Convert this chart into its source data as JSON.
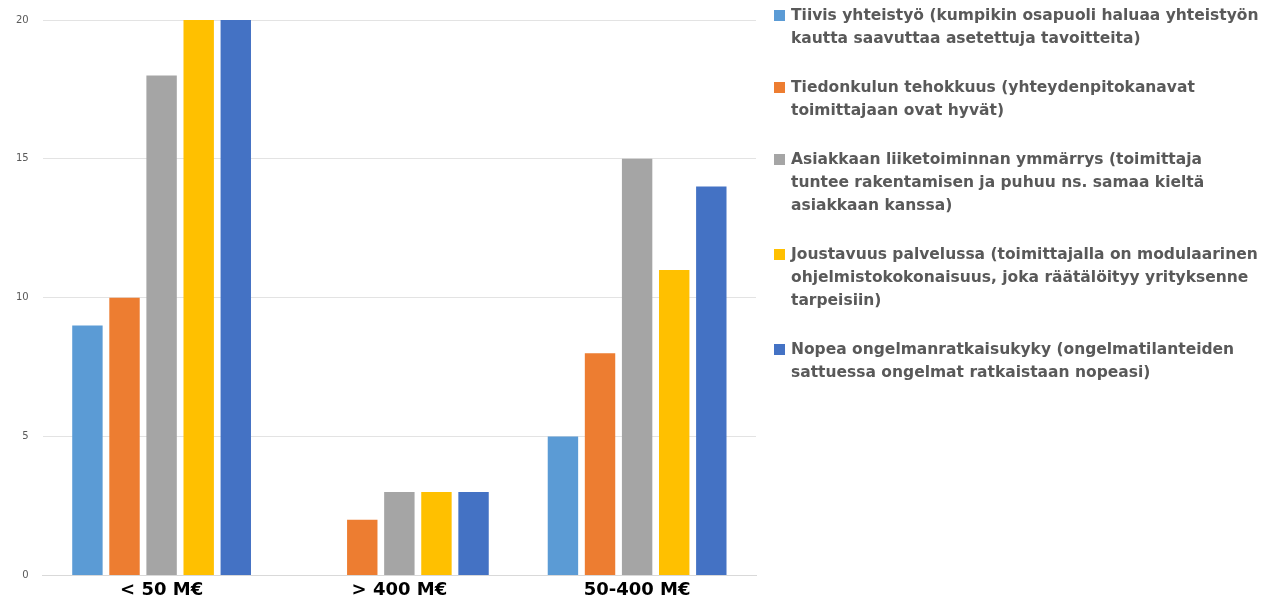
{
  "chart_data": {
    "type": "bar",
    "categories": [
      "< 50 M€",
      "> 400 M€",
      "50-400 M€"
    ],
    "series": [
      {
        "name": "Tiivis yhteistyö (kumpikin osapuoli haluaa yhteistyön kautta saavuttaa asetettuja tavoitteita)",
        "color": "#5b9bd5",
        "values": [
          9,
          0,
          5
        ]
      },
      {
        "name": "Tiedonkulun tehokkuus (yhteydenpitokanavat toimittajaan ovat hyvät)",
        "color": "#ed7d31",
        "values": [
          10,
          2,
          8
        ]
      },
      {
        "name": "Asiakkaan liiketoiminnan ymmärrys (toimittaja tuntee rakentamisen ja puhuu ns. samaa kieltä asiakkaan kanssa)",
        "color": "#a5a5a5",
        "values": [
          18,
          3,
          15
        ]
      },
      {
        "name": "Joustavuus palvelussa (toimittajalla on modulaarinen ohjelmistokokonaisuus, joka räätälöityy yrityksenne tarpeisiin)",
        "color": "#ffc000",
        "values": [
          20,
          3,
          11
        ]
      },
      {
        "name": "Nopea ongelmanratkaisukyky (ongelmatilanteiden sattuessa ongelmat ratkaistaan nopeasi)",
        "color": "#4472c4",
        "values": [
          20,
          3,
          14
        ]
      }
    ],
    "ylim": [
      0,
      20
    ],
    "yticks": [
      0,
      5,
      10,
      15,
      20
    ],
    "grid": "y",
    "legend": "right"
  }
}
